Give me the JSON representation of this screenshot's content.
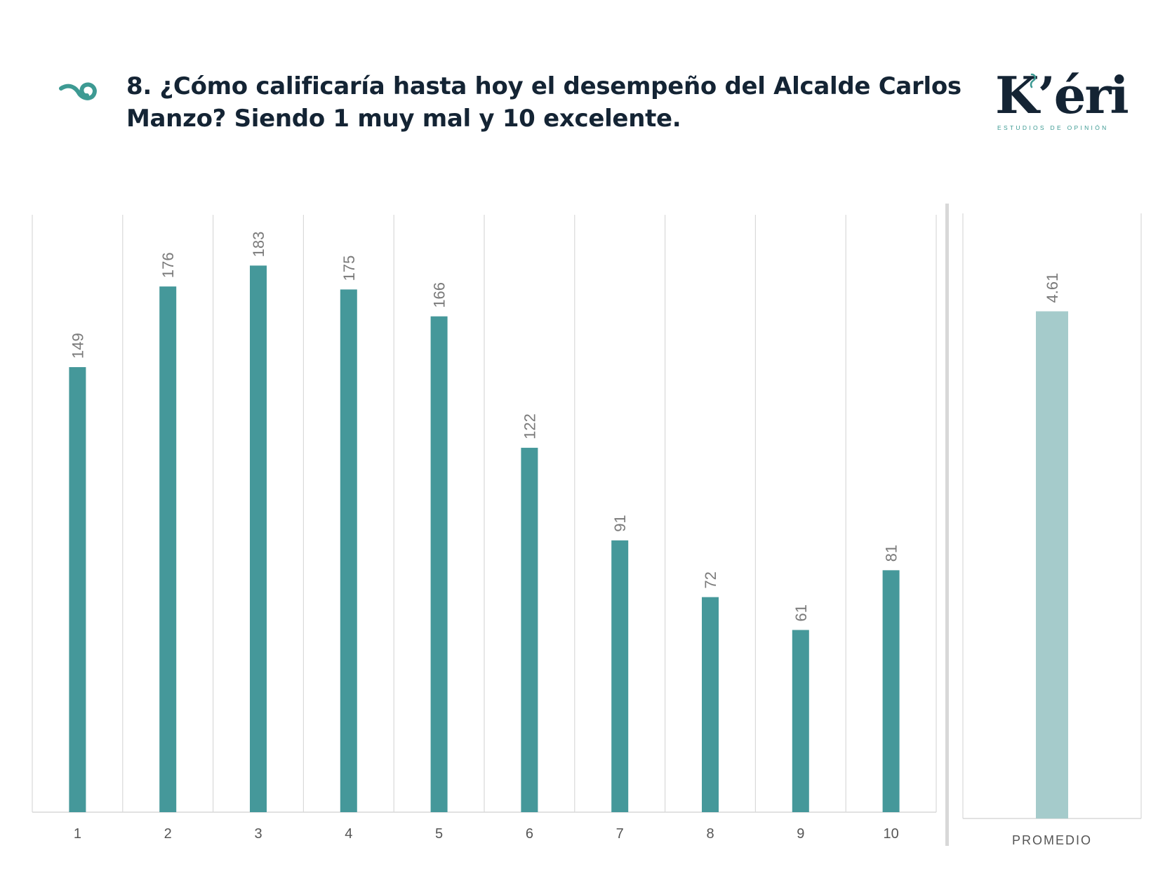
{
  "header": {
    "title": "8. ¿Cómo calificaría hasta hoy el desempeño del Alcalde Carlos Manzo? Siendo 1 muy mal y 10 excelente.",
    "swirl_icon": "teal-swirl-icon",
    "logo_text": "K’éri",
    "logo_subtitle": "ESTUDIOS DE OPINIÓN"
  },
  "colors": {
    "bar": "#45989a",
    "average_bar": "#a5cbcb",
    "title": "#142434",
    "accent": "#3d9a93",
    "grid": "#d9d9d9",
    "label": "#7a7a7a"
  },
  "chart_data": [
    {
      "type": "bar",
      "categories": [
        "1",
        "2",
        "3",
        "4",
        "5",
        "6",
        "7",
        "8",
        "9",
        "10"
      ],
      "values": [
        149,
        176,
        183,
        175,
        166,
        122,
        91,
        72,
        61,
        81
      ],
      "title": "",
      "xlabel": "",
      "ylabel": "",
      "ylim": [
        0,
        200
      ],
      "grid": "vertical",
      "data_labels": "rotated"
    },
    {
      "type": "bar",
      "categories": [
        "PROMEDIO"
      ],
      "values": [
        4.61
      ],
      "value_labels": [
        "4.61"
      ],
      "title": "",
      "xlabel": "",
      "ylabel": "",
      "ylim": [
        0,
        5.5
      ],
      "grid": "vertical",
      "data_labels": "rotated"
    }
  ]
}
